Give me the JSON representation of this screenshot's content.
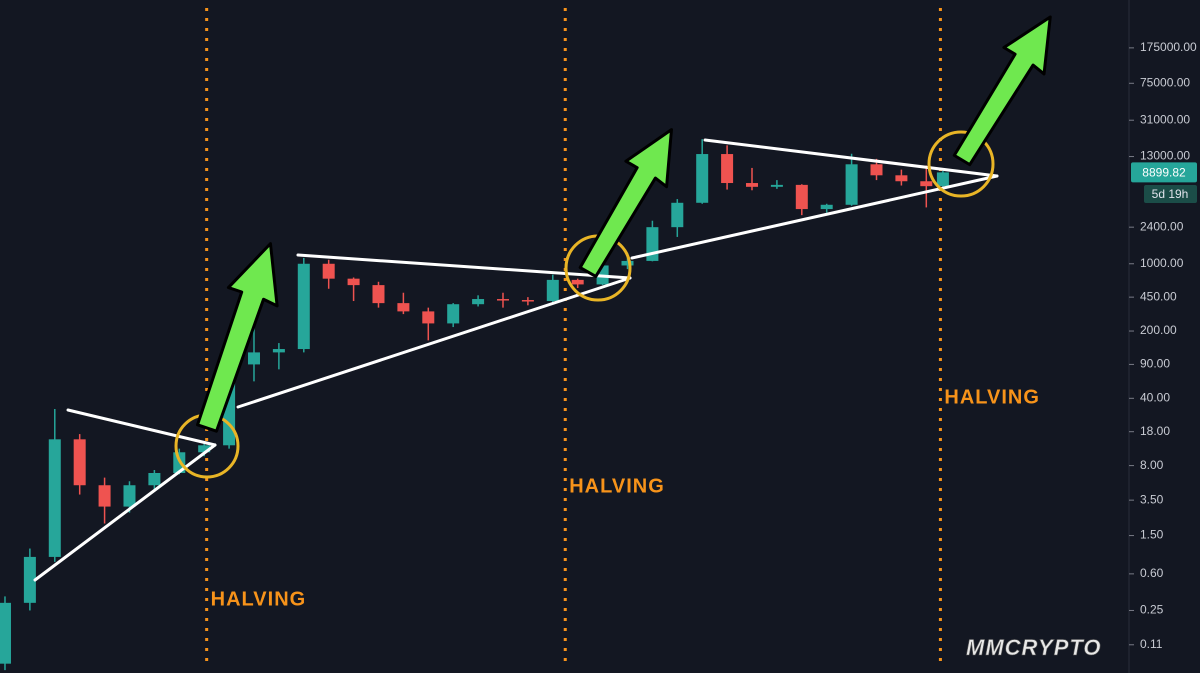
{
  "chart_data": {
    "type": "candlestick",
    "log_scale": true,
    "ylim": [
      0.056,
      550000
    ],
    "xlim": [
      -0.6,
      135.3
    ],
    "up_color": "#26a69a",
    "down_color": "#ef5350",
    "yticks": [
      {
        "value": 175000,
        "label": "175000.00"
      },
      {
        "value": 75000,
        "label": "75000.00"
      },
      {
        "value": 31000,
        "label": "31000.00"
      },
      {
        "value": 13000,
        "label": "13000.00"
      },
      {
        "value": 2400,
        "label": "2400.00"
      },
      {
        "value": 1000,
        "label": "1000.00"
      },
      {
        "value": 450,
        "label": "450.00"
      },
      {
        "value": 200,
        "label": "200.00"
      },
      {
        "value": 90,
        "label": "90.00"
      },
      {
        "value": 40,
        "label": "40.00"
      },
      {
        "value": 18,
        "label": "18.00"
      },
      {
        "value": 8,
        "label": "8.00"
      },
      {
        "value": 3.5,
        "label": "3.50"
      },
      {
        "value": 1.5,
        "label": "1.50"
      },
      {
        "value": 0.6,
        "label": "0.60"
      },
      {
        "value": 0.25,
        "label": "0.25"
      },
      {
        "value": 0.11,
        "label": "0.11"
      }
    ],
    "candles": {
      "x": [
        0,
        3,
        6,
        9,
        12,
        15,
        18,
        21,
        24,
        27,
        30,
        33,
        36,
        39,
        42,
        45,
        48,
        51,
        54,
        57,
        60,
        63,
        66,
        69,
        72,
        75,
        78,
        81,
        84,
        87,
        90,
        93,
        96,
        99,
        102,
        105,
        108,
        111,
        113
      ],
      "open": [
        0.07,
        0.3,
        0.9,
        15,
        5,
        3,
        5,
        6.7,
        11,
        13,
        90,
        120,
        130,
        1000,
        700,
        600,
        390,
        320,
        240,
        380,
        430,
        420,
        410,
        680,
        610,
        960,
        1070,
        2400,
        4300,
        13800,
        6900,
        6300,
        6600,
        3700,
        4100,
        10800,
        8300,
        7200,
        6400
      ],
      "high": [
        0.35,
        1.1,
        31,
        17,
        6,
        5.5,
        7.2,
        12,
        14,
        100,
        260,
        150,
        1150,
        1100,
        720,
        650,
        500,
        350,
        390,
        470,
        500,
        450,
        770,
        700,
        990,
        1300,
        2800,
        4700,
        19700,
        17000,
        9900,
        7400,
        6700,
        4200,
        13900,
        12300,
        9500,
        10500,
        9200
      ],
      "low": [
        0.06,
        0.25,
        0.8,
        4,
        2,
        2.6,
        4.5,
        6.5,
        10,
        12,
        60,
        80,
        120,
        550,
        410,
        350,
        300,
        160,
        220,
        360,
        350,
        370,
        400,
        560,
        600,
        880,
        1060,
        1900,
        4200,
        5900,
        5800,
        6000,
        3200,
        3400,
        4000,
        7400,
        6500,
        3850,
        6200
      ],
      "close": [
        0.3,
        0.9,
        15,
        5,
        3,
        5,
        6.7,
        11,
        13,
        90,
        120,
        130,
        1000,
        700,
        600,
        390,
        320,
        240,
        380,
        430,
        420,
        410,
        680,
        610,
        960,
        1070,
        2400,
        4300,
        13800,
        6900,
        6300,
        6600,
        3700,
        4100,
        10800,
        8300,
        7200,
        6400,
        8899.82
      ]
    },
    "halvings": {
      "x": [
        24.3,
        67.5,
        112.7
      ],
      "label": "HALVING",
      "color": "#f7931a"
    },
    "last_price": 8899.82,
    "countdown": "5d 19h",
    "watermark": "MMCRYPTO"
  }
}
